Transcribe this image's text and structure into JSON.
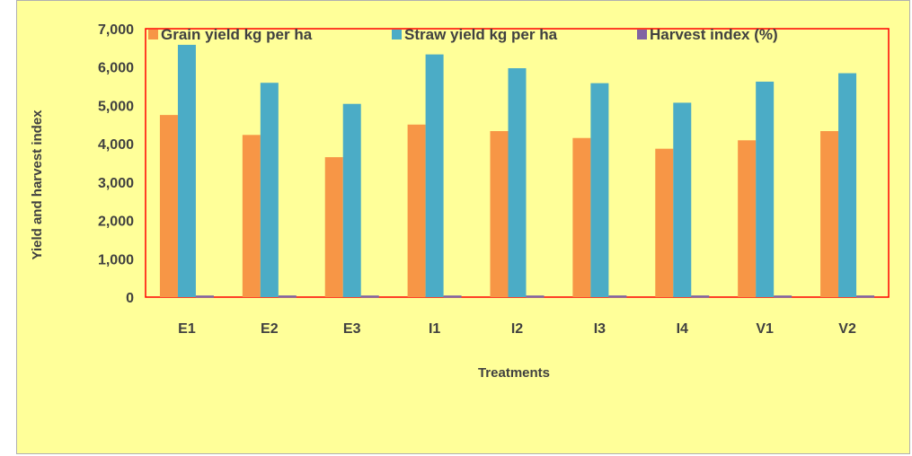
{
  "chart_data": {
    "type": "bar",
    "categories": [
      "E1",
      "E2",
      "E3",
      "I1",
      "I2",
      "I3",
      "I4",
      "V1",
      "V2"
    ],
    "series": [
      {
        "name": "Grain yield kg per ha",
        "color": "#f79646",
        "values": [
          4750,
          4230,
          3650,
          4500,
          4330,
          4150,
          3870,
          4090,
          4330
        ]
      },
      {
        "name": "Straw yield kg per ha",
        "color": "#4bacc6",
        "values": [
          6580,
          5590,
          5040,
          6330,
          5970,
          5580,
          5070,
          5620,
          5840
        ]
      },
      {
        "name": "Harvest index (%)",
        "color": "#8064a2",
        "values": [
          42,
          43,
          42,
          42,
          42,
          43,
          43,
          42,
          43
        ]
      }
    ],
    "xlabel": "Treatments",
    "ylabel": "Yield and harvest index",
    "ylim": [
      0,
      7000
    ],
    "yticks": [
      "0",
      "1,000",
      "2,000",
      "3,000",
      "4,000",
      "5,000",
      "6,000",
      "7,000"
    ],
    "ytick_values": [
      0,
      1000,
      2000,
      3000,
      4000,
      5000,
      6000,
      7000
    ],
    "legend_position": "top",
    "plot_border_color": "#ff0000",
    "background_color": "#ffff99",
    "grid": false
  }
}
